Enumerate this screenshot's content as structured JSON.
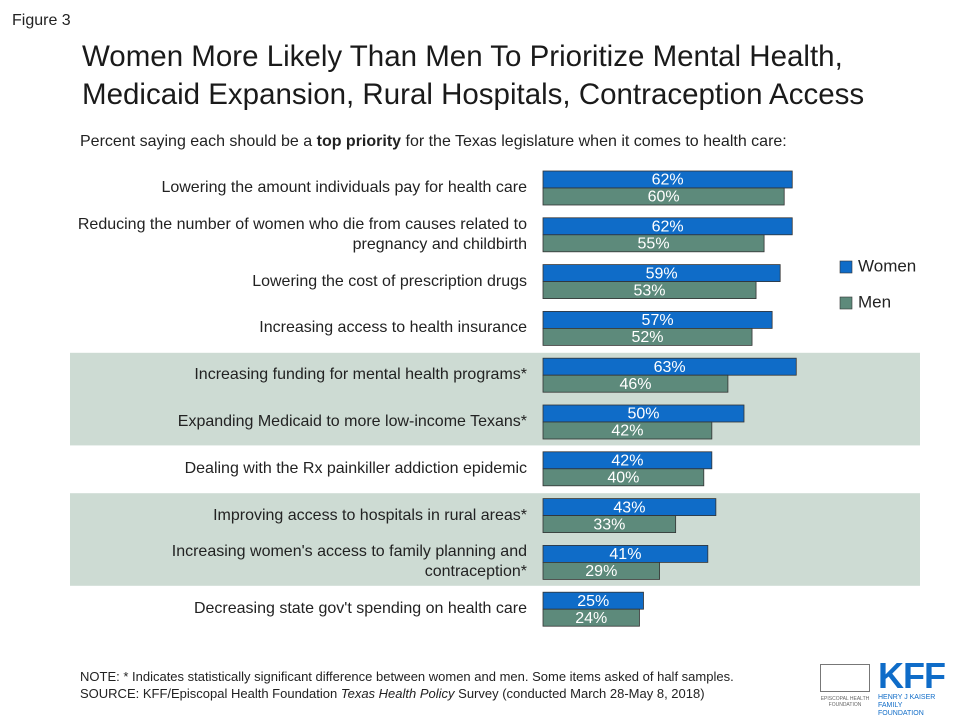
{
  "figure_label": "Figure 3",
  "chart_data": {
    "type": "bar",
    "orientation": "horizontal",
    "title": "Women More Likely Than Men To Prioritize Mental Health, Medicaid Expansion, Rural Hospitals, Contraception Access",
    "subtitle": [
      "Percent saying each should be a ",
      "top priority",
      " for the Texas legislature when it comes to health care:"
    ],
    "categories": [
      "Lowering the amount individuals pay for health care",
      "Reducing the number of women who die from causes related to pregnancy and childbirth",
      "Lowering the cost of prescription drugs",
      "Increasing access to health insurance",
      "Increasing funding for mental health programs*",
      "Expanding Medicaid to more low-income Texans*",
      "Dealing with the Rx painkiller addiction epidemic",
      "Improving access to hospitals in rural areas*",
      "Increasing women's access to family planning and contraception*",
      "Decreasing state gov't spending on health care"
    ],
    "series": [
      {
        "name": "Women",
        "color": "#0f6cc8",
        "values": [
          62,
          62,
          59,
          57,
          63,
          50,
          42,
          43,
          41,
          25
        ],
        "value_labels": [
          "62%",
          "62%",
          "59%",
          "57%",
          "63%",
          "50%",
          "42%",
          "43%",
          "41%",
          "25%"
        ]
      },
      {
        "name": "Men",
        "color": "#5d8a7b",
        "values": [
          60,
          55,
          53,
          52,
          46,
          42,
          40,
          33,
          29,
          24
        ],
        "value_labels": [
          "60%",
          "55%",
          "53%",
          "52%",
          "46%",
          "42%",
          "40%",
          "33%",
          "29%",
          "24%"
        ]
      }
    ],
    "highlight_groups": [
      [
        4,
        5
      ],
      [
        7,
        8
      ]
    ],
    "highlight_color": "#cddbd3",
    "legend": "right"
  },
  "note": "NOTE: * Indicates statistically significant difference between women and men. Some items asked of half samples.",
  "source": [
    "SOURCE: KFF/Episcopal Health Foundation ",
    "Texas Health Policy",
    " Survey (conducted March 28-May 8, 2018)"
  ],
  "logos": {
    "ehf": "EPISCOPAL HEALTH FOUNDATION",
    "kff": "KFF",
    "kff_sub": "HENRY J KAISER FAMILY FOUNDATION"
  }
}
